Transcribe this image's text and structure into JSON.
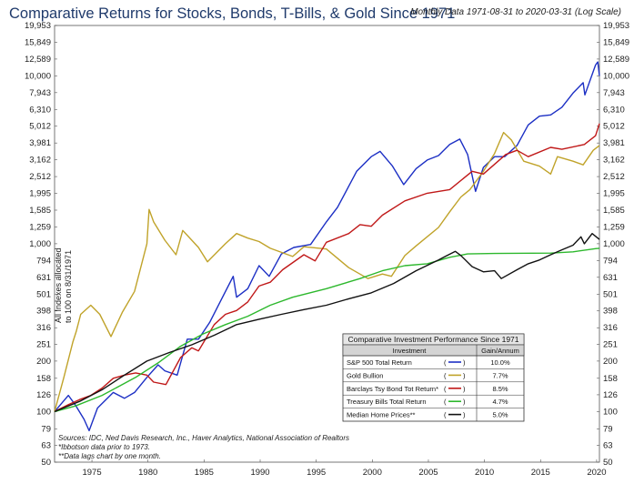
{
  "title": "Comparative Returns for Stocks, Bonds, T-Bills, & Gold Since 1971",
  "subtitle": "Monthly Data 1971-08-31 to 2020-03-31 (Log Scale)",
  "y_axis_note": [
    "All Indexes allocated",
    "to 100 on 8/31/1971"
  ],
  "sources": [
    "Sources: IDC, Ned Davis Research, Inc., Haver Analytics, National Association of Realtors",
    "*Ibbotson data prior to 1973.",
    "**Data lags chart by one month."
  ],
  "table": {
    "title": "Comparative Investment Performance Since 1971",
    "col_investment": "Investment",
    "col_gain": "Gain/Annum",
    "rows": [
      {
        "label": "S&P 500 Total Return",
        "open": "(",
        "close": ")",
        "value": "10.0%",
        "color": "#1c2fc4"
      },
      {
        "label": "Gold Bullion",
        "open": "(",
        "close": ")",
        "value": "7.7%",
        "color": "#c0a32a"
      },
      {
        "label": "Barclays Tsy Bond Tot Return*",
        "open": "(",
        "close": ")",
        "value": "8.5%",
        "color": "#c01818"
      },
      {
        "label": "Treasury Bills Total Return",
        "open": "(",
        "close": ")",
        "value": "4.7%",
        "color": "#2db82d"
      },
      {
        "label": "Median Home Prices**",
        "open": "(",
        "close": ")",
        "value": "5.0%",
        "color": "#111111"
      }
    ]
  },
  "chart_data": {
    "type": "line",
    "title": "Comparative Returns for Stocks, Bonds, T-Bills, & Gold Since 1971",
    "subtitle": "Monthly Data 1971-08-31 to 2020-03-31 (Log Scale)",
    "xlabel": "",
    "ylabel": "All Indexes allocated to 100 on 8/31/1971",
    "y_scale": "log",
    "ylim": [
      50,
      19953
    ],
    "xlim": [
      1971.67,
      2020.25
    ],
    "x_ticks": [
      "1975",
      "1980",
      "1985",
      "1990",
      "1995",
      "2000",
      "2005",
      "2010",
      "2015",
      "2020"
    ],
    "y_ticks": [
      50,
      63,
      79,
      100,
      126,
      158,
      200,
      251,
      316,
      398,
      501,
      631,
      794,
      1000,
      1259,
      1585,
      1995,
      2512,
      3162,
      3981,
      5012,
      6310,
      7943,
      10000,
      12589,
      15849,
      19953
    ],
    "y_tick_labels": [
      "50",
      "63",
      "79",
      "100",
      "126",
      "158",
      "200",
      "251",
      "316",
      "398",
      "501",
      "631",
      "794",
      "1,000",
      "1,259",
      "1,585",
      "1,995",
      "2,512",
      "3,162",
      "3,981",
      "5,012",
      "6,310",
      "7,943",
      "10,000",
      "12,589",
      "15,849",
      "19,953"
    ],
    "grid": false,
    "legend": "table bottom-right",
    "series": [
      {
        "name": "S&P 500 Total Return",
        "color": "#1c2fc4",
        "points": [
          [
            1971.67,
            100
          ],
          [
            1972.9,
            125
          ],
          [
            1973.5,
            110
          ],
          [
            1974.3,
            90
          ],
          [
            1974.75,
            77
          ],
          [
            1975.5,
            105
          ],
          [
            1976.9,
            130
          ],
          [
            1977.9,
            120
          ],
          [
            1978.8,
            130
          ],
          [
            1979.9,
            160
          ],
          [
            1980.9,
            190
          ],
          [
            1981.5,
            175
          ],
          [
            1982.6,
            165
          ],
          [
            1983.5,
            270
          ],
          [
            1984.5,
            270
          ],
          [
            1985.5,
            340
          ],
          [
            1986.5,
            460
          ],
          [
            1987.6,
            640
          ],
          [
            1987.9,
            480
          ],
          [
            1988.9,
            540
          ],
          [
            1989.9,
            740
          ],
          [
            1990.8,
            640
          ],
          [
            1991.9,
            870
          ],
          [
            1993.0,
            950
          ],
          [
            1994.5,
            990
          ],
          [
            1995.9,
            1350
          ],
          [
            1996.9,
            1650
          ],
          [
            1997.9,
            2200
          ],
          [
            1998.6,
            2700
          ],
          [
            1999.9,
            3300
          ],
          [
            2000.7,
            3550
          ],
          [
            2001.8,
            2900
          ],
          [
            2002.8,
            2250
          ],
          [
            2003.9,
            2800
          ],
          [
            2004.9,
            3150
          ],
          [
            2005.9,
            3350
          ],
          [
            2006.9,
            3900
          ],
          [
            2007.8,
            4200
          ],
          [
            2008.5,
            3400
          ],
          [
            2009.2,
            2050
          ],
          [
            2009.9,
            2850
          ],
          [
            2010.9,
            3300
          ],
          [
            2011.8,
            3300
          ],
          [
            2012.9,
            3850
          ],
          [
            2013.9,
            5100
          ],
          [
            2014.9,
            5750
          ],
          [
            2015.9,
            5850
          ],
          [
            2016.9,
            6500
          ],
          [
            2017.9,
            7900
          ],
          [
            2018.8,
            9100
          ],
          [
            2018.95,
            7700
          ],
          [
            2019.9,
            11600
          ],
          [
            2020.1,
            12100
          ],
          [
            2020.25,
            10000
          ]
        ]
      },
      {
        "name": "Gold Bullion",
        "color": "#c0a32a",
        "points": [
          [
            1971.67,
            100
          ],
          [
            1972.5,
            160
          ],
          [
            1973.3,
            260
          ],
          [
            1973.6,
            300
          ],
          [
            1974.0,
            380
          ],
          [
            1974.9,
            430
          ],
          [
            1975.7,
            380
          ],
          [
            1976.7,
            280
          ],
          [
            1977.7,
            390
          ],
          [
            1978.8,
            520
          ],
          [
            1979.9,
            1000
          ],
          [
            1980.1,
            1600
          ],
          [
            1980.5,
            1350
          ],
          [
            1981.5,
            1050
          ],
          [
            1982.5,
            860
          ],
          [
            1983.1,
            1200
          ],
          [
            1984.5,
            950
          ],
          [
            1985.3,
            780
          ],
          [
            1986.9,
            1000
          ],
          [
            1987.9,
            1150
          ],
          [
            1988.9,
            1080
          ],
          [
            1989.9,
            1030
          ],
          [
            1990.9,
            940
          ],
          [
            1992.9,
            840
          ],
          [
            1993.9,
            960
          ],
          [
            1995.9,
            930
          ],
          [
            1997.9,
            720
          ],
          [
            1999.6,
            620
          ],
          [
            2000.9,
            660
          ],
          [
            2001.7,
            640
          ],
          [
            2002.9,
            850
          ],
          [
            2003.9,
            970
          ],
          [
            2005.9,
            1250
          ],
          [
            2006.9,
            1550
          ],
          [
            2007.9,
            1900
          ],
          [
            2008.7,
            2100
          ],
          [
            2009.9,
            2700
          ],
          [
            2010.9,
            3450
          ],
          [
            2011.7,
            4600
          ],
          [
            2012.4,
            4150
          ],
          [
            2013.5,
            3100
          ],
          [
            2014.9,
            2900
          ],
          [
            2015.9,
            2600
          ],
          [
            2016.5,
            3300
          ],
          [
            2017.9,
            3100
          ],
          [
            2018.8,
            2950
          ],
          [
            2019.7,
            3600
          ],
          [
            2020.25,
            3850
          ]
        ]
      },
      {
        "name": "Barclays Tsy Bond Tot Return*",
        "color": "#c01818",
        "points": [
          [
            1971.67,
            100
          ],
          [
            1972.9,
            110
          ],
          [
            1973.9,
            118
          ],
          [
            1974.9,
            125
          ],
          [
            1975.9,
            138
          ],
          [
            1976.9,
            158
          ],
          [
            1977.9,
            165
          ],
          [
            1978.9,
            170
          ],
          [
            1979.9,
            165
          ],
          [
            1980.5,
            150
          ],
          [
            1981.6,
            145
          ],
          [
            1982.9,
            210
          ],
          [
            1983.9,
            240
          ],
          [
            1984.5,
            230
          ],
          [
            1985.9,
            330
          ],
          [
            1986.9,
            380
          ],
          [
            1987.9,
            400
          ],
          [
            1988.9,
            450
          ],
          [
            1989.9,
            560
          ],
          [
            1990.9,
            590
          ],
          [
            1992.0,
            700
          ],
          [
            1993.9,
            860
          ],
          [
            1994.9,
            790
          ],
          [
            1995.9,
            1020
          ],
          [
            1997.9,
            1150
          ],
          [
            1998.9,
            1300
          ],
          [
            1999.9,
            1270
          ],
          [
            2000.9,
            1480
          ],
          [
            2002.9,
            1800
          ],
          [
            2004.9,
            2000
          ],
          [
            2006.9,
            2100
          ],
          [
            2008.9,
            2700
          ],
          [
            2009.9,
            2600
          ],
          [
            2011.9,
            3400
          ],
          [
            2012.9,
            3600
          ],
          [
            2013.9,
            3300
          ],
          [
            2015.9,
            3750
          ],
          [
            2016.9,
            3650
          ],
          [
            2018.9,
            3900
          ],
          [
            2019.9,
            4400
          ],
          [
            2020.25,
            5200
          ]
        ]
      },
      {
        "name": "Treasury Bills Total Return",
        "color": "#2db82d",
        "points": [
          [
            1971.67,
            100
          ],
          [
            1973.5,
            108
          ],
          [
            1975.9,
            125
          ],
          [
            1978.9,
            160
          ],
          [
            1980.9,
            195
          ],
          [
            1982.9,
            245
          ],
          [
            1984.9,
            290
          ],
          [
            1986.9,
            330
          ],
          [
            1988.9,
            370
          ],
          [
            1990.9,
            430
          ],
          [
            1992.9,
            480
          ],
          [
            1995.9,
            540
          ],
          [
            1998.9,
            620
          ],
          [
            2000.9,
            690
          ],
          [
            2002.9,
            740
          ],
          [
            2004.9,
            760
          ],
          [
            2006.9,
            830
          ],
          [
            2008.5,
            870
          ],
          [
            2010.9,
            875
          ],
          [
            2015.9,
            880
          ],
          [
            2017.9,
            895
          ],
          [
            2019.9,
            935
          ],
          [
            2020.25,
            940
          ]
        ]
      },
      {
        "name": "Median Home Prices**",
        "color": "#111111",
        "points": [
          [
            1971.67,
            100
          ],
          [
            1973.9,
            115
          ],
          [
            1975.9,
            135
          ],
          [
            1977.9,
            165
          ],
          [
            1979.9,
            200
          ],
          [
            1981.9,
            225
          ],
          [
            1983.9,
            250
          ],
          [
            1985.9,
            285
          ],
          [
            1987.9,
            330
          ],
          [
            1989.9,
            355
          ],
          [
            1991.9,
            380
          ],
          [
            1993.9,
            405
          ],
          [
            1995.9,
            430
          ],
          [
            1997.9,
            470
          ],
          [
            1999.9,
            510
          ],
          [
            2001.9,
            580
          ],
          [
            2003.9,
            690
          ],
          [
            2005.9,
            800
          ],
          [
            2006.5,
            840
          ],
          [
            2007.4,
            900
          ],
          [
            2007.9,
            850
          ],
          [
            2008.9,
            730
          ],
          [
            2009.9,
            680
          ],
          [
            2010.9,
            690
          ],
          [
            2011.5,
            620
          ],
          [
            2012.9,
            700
          ],
          [
            2013.9,
            760
          ],
          [
            2014.9,
            800
          ],
          [
            2015.9,
            860
          ],
          [
            2016.9,
            920
          ],
          [
            2017.9,
            980
          ],
          [
            2018.6,
            1100
          ],
          [
            2018.9,
            1000
          ],
          [
            2019.6,
            1150
          ],
          [
            2020.25,
            1060
          ]
        ]
      }
    ]
  }
}
